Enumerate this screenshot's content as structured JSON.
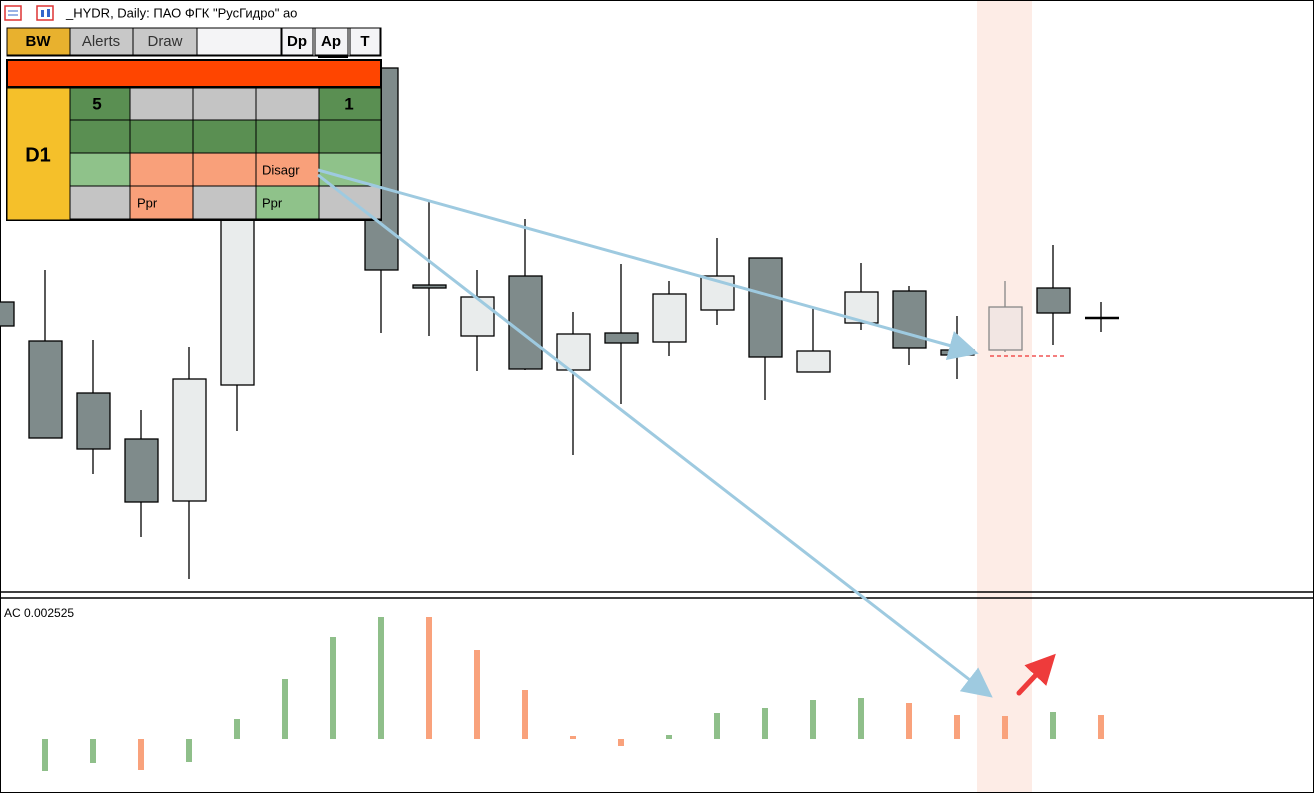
{
  "header": {
    "title": "_HYDR, Daily:  ПАО ФГК \"РусГидро\" ао"
  },
  "panel": {
    "buttons": [
      "BW",
      "Alerts",
      "Draw",
      "Dp",
      "Ap",
      "T"
    ],
    "timeframe": "D1",
    "cells": [
      "5",
      "1",
      "Disagr",
      "Ppr",
      "Ppr"
    ]
  },
  "indicator": {
    "label": "AC 0.002525"
  }
}
